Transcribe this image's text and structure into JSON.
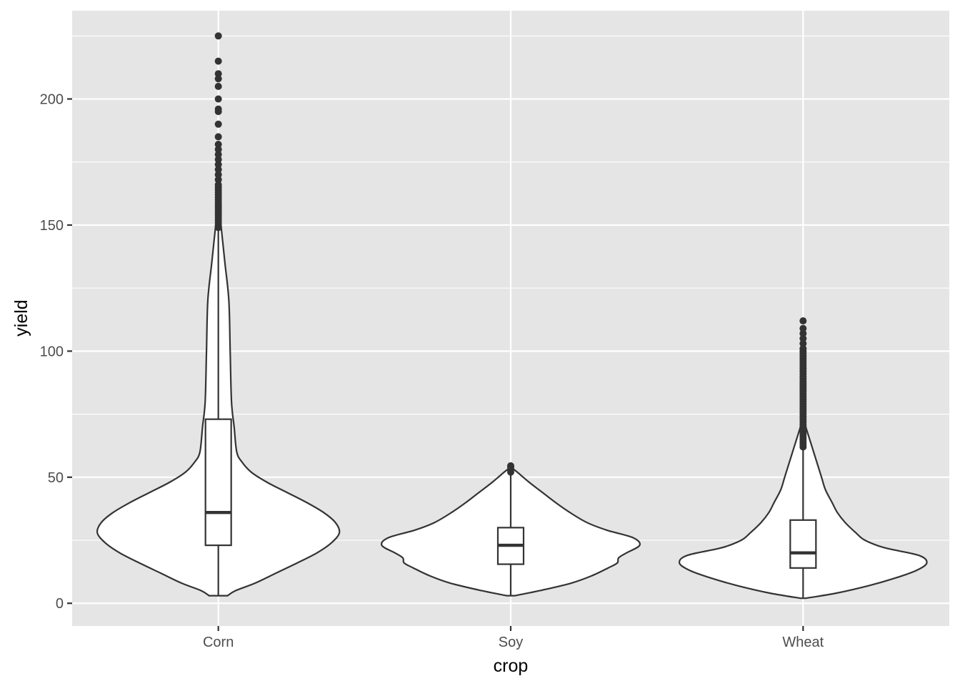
{
  "chart_data": {
    "type": "violin",
    "title": "",
    "xlabel": "crop",
    "ylabel": "yield",
    "categories": [
      "Corn",
      "Soy",
      "Wheat"
    ],
    "ylim": [
      -9,
      235
    ],
    "yticks": [
      0,
      50,
      100,
      150,
      200
    ],
    "grid": true,
    "legend": "none",
    "colors": {
      "panel": "#e5e5e5",
      "grid": "#ffffff",
      "outline": "#333333",
      "fill": "#ffffff",
      "text": "#4d4d4d"
    },
    "series": [
      {
        "category": "Corn",
        "violin_profile": [
          [
            3,
            0.07
          ],
          [
            5,
            0.13
          ],
          [
            8,
            0.28
          ],
          [
            12,
            0.44
          ],
          [
            16,
            0.6
          ],
          [
            20,
            0.75
          ],
          [
            24,
            0.86
          ],
          [
            28,
            0.92
          ],
          [
            32,
            0.89
          ],
          [
            36,
            0.8
          ],
          [
            40,
            0.67
          ],
          [
            44,
            0.52
          ],
          [
            48,
            0.37
          ],
          [
            52,
            0.25
          ],
          [
            56,
            0.18
          ],
          [
            60,
            0.14
          ],
          [
            70,
            0.12
          ],
          [
            80,
            0.1
          ],
          [
            100,
            0.09
          ],
          [
            120,
            0.08
          ],
          [
            135,
            0.05
          ],
          [
            150,
            0.02
          ],
          [
            160,
            0.0
          ]
        ],
        "box": {
          "whisker_low": 3,
          "q1": 23,
          "median": 36,
          "q3": 73,
          "whisker_high": 148
        },
        "outliers": [
          149,
          150,
          151,
          152,
          153,
          154,
          155,
          156,
          157,
          158,
          159,
          160,
          161,
          162,
          163,
          164,
          165,
          166,
          168,
          170,
          172,
          174,
          176,
          178,
          180,
          182,
          185,
          190,
          195,
          196,
          200,
          205,
          208,
          210,
          215,
          225
        ]
      },
      {
        "category": "Soy",
        "violin_profile": [
          [
            3,
            0.03
          ],
          [
            5,
            0.22
          ],
          [
            8,
            0.46
          ],
          [
            11,
            0.62
          ],
          [
            14,
            0.74
          ],
          [
            16,
            0.81
          ],
          [
            18,
            0.82
          ],
          [
            20,
            0.88
          ],
          [
            23,
            0.98
          ],
          [
            26,
            0.93
          ],
          [
            29,
            0.73
          ],
          [
            32,
            0.58
          ],
          [
            36,
            0.45
          ],
          [
            40,
            0.34
          ],
          [
            44,
            0.24
          ],
          [
            48,
            0.14
          ],
          [
            52,
            0.05
          ],
          [
            54,
            0.0
          ]
        ],
        "box": {
          "whisker_low": 3,
          "q1": 15.5,
          "median": 23,
          "q3": 30,
          "whisker_high": 52
        },
        "outliers": [
          52,
          53,
          54,
          54.5
        ]
      },
      {
        "category": "Wheat",
        "violin_profile": [
          [
            2,
            0.02
          ],
          [
            4,
            0.25
          ],
          [
            7,
            0.5
          ],
          [
            10,
            0.7
          ],
          [
            13,
            0.86
          ],
          [
            16,
            0.94
          ],
          [
            19,
            0.88
          ],
          [
            22,
            0.62
          ],
          [
            25,
            0.47
          ],
          [
            28,
            0.4
          ],
          [
            32,
            0.32
          ],
          [
            36,
            0.26
          ],
          [
            40,
            0.22
          ],
          [
            45,
            0.17
          ],
          [
            50,
            0.14
          ],
          [
            55,
            0.11
          ],
          [
            60,
            0.08
          ],
          [
            65,
            0.05
          ],
          [
            70,
            0.02
          ],
          [
            74,
            0.0
          ]
        ],
        "box": {
          "whisker_low": 2,
          "q1": 14,
          "median": 20,
          "q3": 33,
          "whisker_high": 61
        },
        "outliers": [
          62,
          63,
          64,
          65,
          66,
          67,
          68,
          69,
          70,
          71,
          72,
          73,
          74,
          75,
          76,
          77,
          78,
          79,
          80,
          81,
          82,
          83,
          84,
          85,
          86,
          87,
          88,
          89,
          90,
          91,
          92,
          93,
          94,
          95,
          96,
          97,
          98,
          99,
          100,
          101,
          103,
          105,
          107,
          109,
          112
        ]
      }
    ]
  }
}
